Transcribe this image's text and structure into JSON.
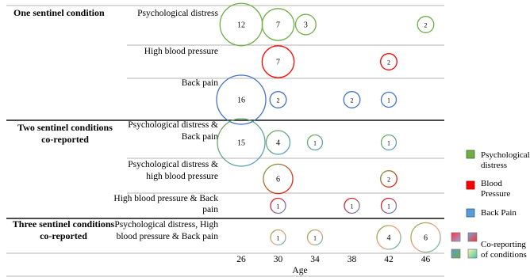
{
  "chart_data": {
    "type": "bubble",
    "xlabel": "Age",
    "x_ticks": [
      26,
      30,
      34,
      38,
      42,
      46
    ],
    "groups": [
      {
        "label": "One sentinel condition",
        "rows": [
          {
            "label": "Psychological distress",
            "mix": "psych",
            "bubbles": [
              {
                "x": 26,
                "value": 12
              },
              {
                "x": 30,
                "value": 7
              },
              {
                "x": 33,
                "value": 3
              },
              {
                "x": 46,
                "value": 2
              }
            ]
          },
          {
            "label": "High blood pressure",
            "mix": "bp",
            "bubbles": [
              {
                "x": 30,
                "value": 7
              },
              {
                "x": 42,
                "value": 2
              }
            ]
          },
          {
            "label": "Back pain",
            "mix": "back",
            "bubbles": [
              {
                "x": 26,
                "value": 16
              },
              {
                "x": 30,
                "value": 2
              },
              {
                "x": 38,
                "value": 2
              },
              {
                "x": 42,
                "value": 1
              }
            ]
          }
        ]
      },
      {
        "label": "Two sentinel conditions co-reported",
        "rows": [
          {
            "label": "Psychological distress & Back pain",
            "mix": "psych-back",
            "bubbles": [
              {
                "x": 26,
                "value": 15
              },
              {
                "x": 30,
                "value": 4
              },
              {
                "x": 34,
                "value": 1
              },
              {
                "x": 42,
                "value": 1
              }
            ]
          },
          {
            "label": "Psychological distress & high blood pressure",
            "mix": "psych-bp",
            "bubbles": [
              {
                "x": 30,
                "value": 6
              },
              {
                "x": 42,
                "value": 2
              }
            ]
          },
          {
            "label": "High blood pressure & Back pain",
            "mix": "bp-back",
            "bubbles": [
              {
                "x": 30,
                "value": 1
              },
              {
                "x": 38,
                "value": 1
              },
              {
                "x": 42,
                "value": 1
              }
            ]
          }
        ]
      },
      {
        "label": "Three sentinel conditions co-reported",
        "rows": [
          {
            "label": "Psychological distress, High blood pressure & Back pain",
            "mix": "all",
            "bubbles": [
              {
                "x": 30,
                "value": 1
              },
              {
                "x": 34,
                "value": 1
              },
              {
                "x": 42,
                "value": 4
              },
              {
                "x": 46,
                "value": 6
              }
            ]
          }
        ]
      }
    ],
    "legend": [
      {
        "label": "Psychological distress",
        "color": "#70ad47"
      },
      {
        "label": "Blood Pressure",
        "color": "#ff0000"
      },
      {
        "label": "Back Pain",
        "color": "#5b9bd5"
      },
      {
        "label": "Co-reporting of conditions",
        "color": "mixed"
      }
    ],
    "colors": {
      "psych": "#70ad47",
      "bp": "#ff0000",
      "back": "#4472c4",
      "teal": "#3fc5b5"
    },
    "legend_placement": "right"
  }
}
